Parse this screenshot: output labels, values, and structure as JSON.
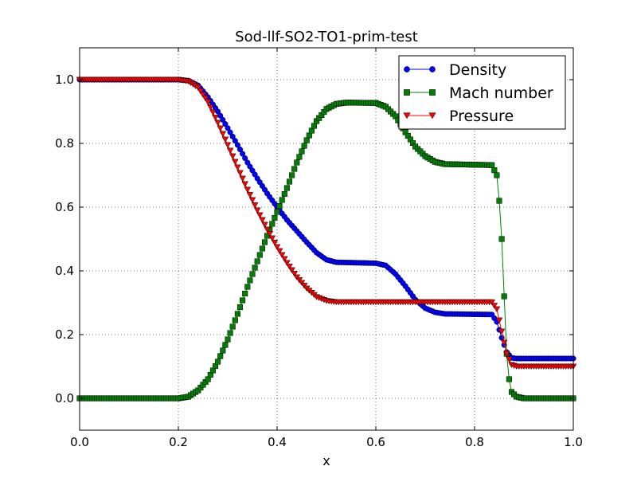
{
  "chart_data": {
    "type": "line",
    "title": "Sod-llf-SO2-TO1-prim-test",
    "xlabel": "x",
    "ylabel": "",
    "xlim": [
      0.0,
      1.0
    ],
    "ylim": [
      -0.1,
      1.1
    ],
    "xticks": [
      0.0,
      0.2,
      0.4,
      0.6,
      0.8,
      1.0
    ],
    "yticks": [
      0.0,
      0.2,
      0.4,
      0.6,
      0.8,
      1.0
    ],
    "xtick_labels": [
      "0.0",
      "0.2",
      "0.4",
      "0.6",
      "0.8",
      "1.0"
    ],
    "ytick_labels": [
      "0.0",
      "0.2",
      "0.4",
      "0.6",
      "0.8",
      "1.0"
    ],
    "grid": true,
    "legend_position": "top-right",
    "x_start": 0.0,
    "x_end": 1.0,
    "num_points": 201,
    "series": [
      {
        "name": "Density",
        "color": "#0000ff",
        "marker": "circle",
        "points": [
          [
            0.0,
            1.0
          ],
          [
            0.2,
            1.0
          ],
          [
            0.22,
            0.997
          ],
          [
            0.24,
            0.982
          ],
          [
            0.26,
            0.945
          ],
          [
            0.28,
            0.9
          ],
          [
            0.3,
            0.848
          ],
          [
            0.32,
            0.795
          ],
          [
            0.34,
            0.74
          ],
          [
            0.36,
            0.69
          ],
          [
            0.38,
            0.643
          ],
          [
            0.4,
            0.6
          ],
          [
            0.42,
            0.56
          ],
          [
            0.44,
            0.525
          ],
          [
            0.46,
            0.49
          ],
          [
            0.48,
            0.457
          ],
          [
            0.5,
            0.435
          ],
          [
            0.52,
            0.427
          ],
          [
            0.6,
            0.424
          ],
          [
            0.62,
            0.417
          ],
          [
            0.64,
            0.39
          ],
          [
            0.66,
            0.352
          ],
          [
            0.68,
            0.31
          ],
          [
            0.7,
            0.283
          ],
          [
            0.72,
            0.27
          ],
          [
            0.74,
            0.265
          ],
          [
            0.835,
            0.263
          ],
          [
            0.845,
            0.24
          ],
          [
            0.855,
            0.19
          ],
          [
            0.865,
            0.145
          ],
          [
            0.875,
            0.127
          ],
          [
            0.885,
            0.125
          ],
          [
            1.0,
            0.125
          ]
        ]
      },
      {
        "name": "Mach number",
        "color": "#008000",
        "marker": "square",
        "points": [
          [
            0.0,
            0.0
          ],
          [
            0.2,
            0.0
          ],
          [
            0.22,
            0.005
          ],
          [
            0.24,
            0.025
          ],
          [
            0.26,
            0.06
          ],
          [
            0.28,
            0.115
          ],
          [
            0.3,
            0.185
          ],
          [
            0.32,
            0.265
          ],
          [
            0.34,
            0.35
          ],
          [
            0.36,
            0.43
          ],
          [
            0.38,
            0.51
          ],
          [
            0.4,
            0.585
          ],
          [
            0.42,
            0.66
          ],
          [
            0.44,
            0.74
          ],
          [
            0.46,
            0.81
          ],
          [
            0.48,
            0.87
          ],
          [
            0.5,
            0.908
          ],
          [
            0.52,
            0.924
          ],
          [
            0.54,
            0.928
          ],
          [
            0.6,
            0.927
          ],
          [
            0.62,
            0.915
          ],
          [
            0.64,
            0.885
          ],
          [
            0.66,
            0.835
          ],
          [
            0.68,
            0.79
          ],
          [
            0.7,
            0.76
          ],
          [
            0.72,
            0.742
          ],
          [
            0.74,
            0.735
          ],
          [
            0.835,
            0.732
          ],
          [
            0.845,
            0.7
          ],
          [
            0.85,
            0.62
          ],
          [
            0.855,
            0.5
          ],
          [
            0.86,
            0.32
          ],
          [
            0.865,
            0.14
          ],
          [
            0.87,
            0.06
          ],
          [
            0.875,
            0.02
          ],
          [
            0.885,
            0.005
          ],
          [
            0.9,
            0.0
          ],
          [
            1.0,
            0.0
          ]
        ]
      },
      {
        "name": "Pressure",
        "color": "#ff0000",
        "marker": "triangle-down",
        "points": [
          [
            0.0,
            1.0
          ],
          [
            0.2,
            1.0
          ],
          [
            0.22,
            0.995
          ],
          [
            0.24,
            0.975
          ],
          [
            0.26,
            0.93
          ],
          [
            0.28,
            0.865
          ],
          [
            0.3,
            0.795
          ],
          [
            0.32,
            0.725
          ],
          [
            0.34,
            0.655
          ],
          [
            0.36,
            0.59
          ],
          [
            0.38,
            0.53
          ],
          [
            0.4,
            0.475
          ],
          [
            0.42,
            0.425
          ],
          [
            0.44,
            0.38
          ],
          [
            0.46,
            0.345
          ],
          [
            0.48,
            0.318
          ],
          [
            0.5,
            0.306
          ],
          [
            0.52,
            0.302
          ],
          [
            0.835,
            0.302
          ],
          [
            0.845,
            0.28
          ],
          [
            0.855,
            0.21
          ],
          [
            0.865,
            0.14
          ],
          [
            0.875,
            0.105
          ],
          [
            0.885,
            0.1
          ],
          [
            1.0,
            0.1
          ]
        ]
      }
    ]
  }
}
